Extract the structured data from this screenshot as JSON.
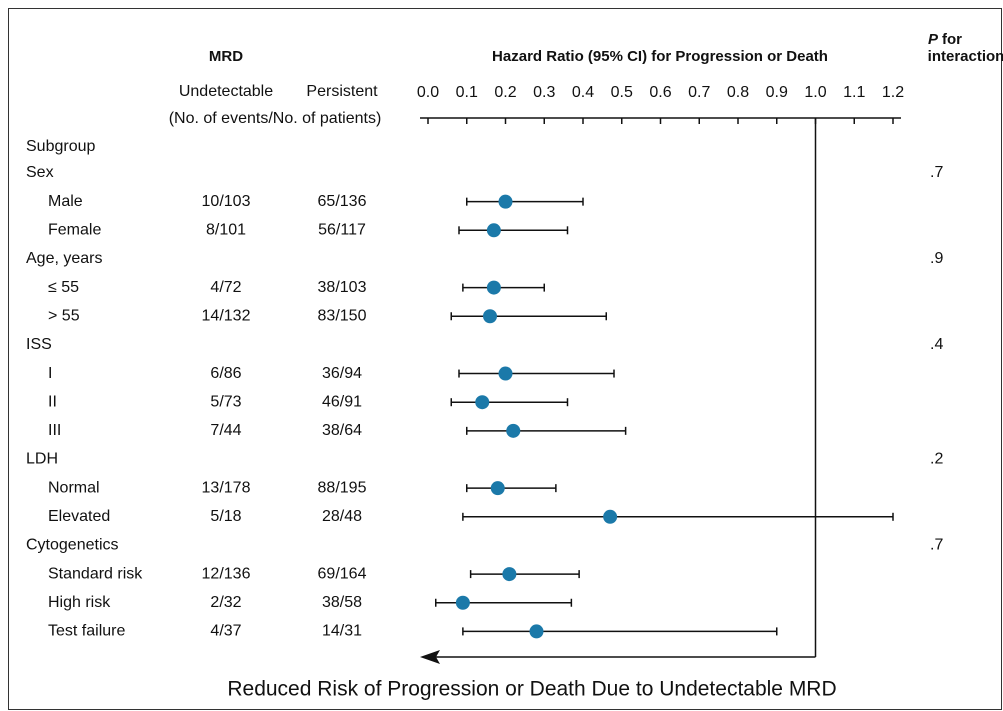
{
  "chart_data": {
    "type": "forest",
    "title": "Hazard Ratio (95% CI) for Progression or Death",
    "column_group": "MRD",
    "columns": [
      "Undetectable",
      "Persistent"
    ],
    "column_note": "(No. of events/No. of patients)",
    "p_symbol": "P",
    "p_header_lines": [
      "for",
      "interaction"
    ],
    "row_header": "Subgroup",
    "xlim": [
      0,
      1.2
    ],
    "xticks": [
      {
        "value": 0,
        "label": "0.0"
      },
      0.1,
      0.2,
      0.3,
      0.4,
      0.5,
      0.6,
      0.7,
      0.8,
      0.9,
      {
        "value": 1,
        "label": "1.0"
      },
      1.1,
      1.2
    ],
    "reference_line": 1,
    "color": "#1b79a9",
    "annotation": "Reduced Risk of Progression or Death Due to Undetectable MRD",
    "groups": [
      {
        "name": "Sex",
        "p_value": ".7",
        "rows": [
          {
            "label": "Male",
            "undetectable": "10/103",
            "persistent": "65/136",
            "hr": 0.2,
            "ci": [
              0.1,
              0.4
            ]
          },
          {
            "label": "Female",
            "undetectable": "8/101",
            "persistent": "56/117",
            "hr": 0.17,
            "ci": [
              0.08,
              0.36
            ]
          }
        ]
      },
      {
        "name": "Age, years",
        "p_value": ".9",
        "rows": [
          {
            "label": "≤ 55",
            "undetectable": "4/72",
            "persistent": "38/103",
            "hr": 0.17,
            "ci": [
              0.09,
              0.3
            ]
          },
          {
            "label": "> 55",
            "undetectable": "14/132",
            "persistent": "83/150",
            "hr": 0.16,
            "ci": [
              0.06,
              0.46
            ]
          }
        ]
      },
      {
        "name": "ISS",
        "p_value": ".4",
        "rows": [
          {
            "label": "I",
            "undetectable": "6/86",
            "persistent": "36/94",
            "hr": 0.2,
            "ci": [
              0.08,
              0.48
            ]
          },
          {
            "label": "II",
            "undetectable": "5/73",
            "persistent": "46/91",
            "hr": 0.14,
            "ci": [
              0.06,
              0.36
            ]
          },
          {
            "label": "III",
            "undetectable": "7/44",
            "persistent": "38/64",
            "hr": 0.22,
            "ci": [
              0.1,
              0.51
            ]
          }
        ]
      },
      {
        "name": "LDH",
        "p_value": ".2",
        "rows": [
          {
            "label": "Normal",
            "undetectable": "13/178",
            "persistent": "88/195",
            "hr": 0.18,
            "ci": [
              0.1,
              0.33
            ]
          },
          {
            "label": "Elevated",
            "undetectable": "5/18",
            "persistent": "28/48",
            "hr": 0.47,
            "ci": [
              0.09,
              1.2
            ]
          }
        ]
      },
      {
        "name": "Cytogenetics",
        "p_value": ".7",
        "rows": [
          {
            "label": "Standard risk",
            "undetectable": "12/136",
            "persistent": "69/164",
            "hr": 0.21,
            "ci": [
              0.11,
              0.39
            ]
          },
          {
            "label": "High risk",
            "undetectable": "2/32",
            "persistent": "38/58",
            "hr": 0.09,
            "ci": [
              0.02,
              0.37
            ]
          },
          {
            "label": "Test failure",
            "undetectable": "4/37",
            "persistent": "14/31",
            "hr": 0.28,
            "ci": [
              0.09,
              0.9
            ]
          }
        ]
      }
    ]
  }
}
